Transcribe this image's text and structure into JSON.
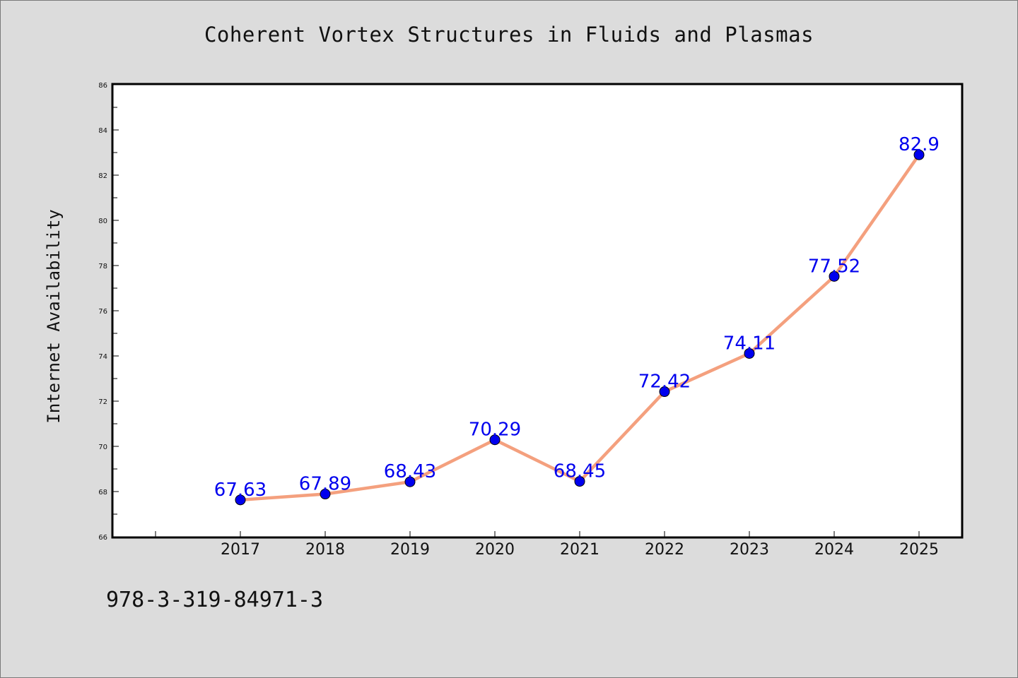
{
  "page": {
    "title": "Coherent Vortex Structures in Fluids and Plasmas",
    "isbn": "978-3-319-84971-3",
    "background_color": "#dcdcdc"
  },
  "chart_data": {
    "type": "line",
    "title": "Coherent Vortex Structures in Fluids and Plasmas",
    "xlabel": "",
    "ylabel": "Internet Availability",
    "x": [
      "2017",
      "2018",
      "2019",
      "2020",
      "2021",
      "2022",
      "2023",
      "2024",
      "2025"
    ],
    "series": [
      {
        "values": [
          67.63,
          67.89,
          68.43,
          70.29,
          68.45,
          72.42,
          74.11,
          77.52,
          82.9
        ],
        "data_labels": [
          "67.63",
          "67.89",
          "68.43",
          "70.29",
          "68.45",
          "72.42",
          "74.11",
          "77.52",
          "82.9"
        ],
        "line_color": "#f4a07e",
        "marker_color": "#0000ee",
        "label_color": "#0000ee"
      }
    ],
    "ylim": [
      66,
      86
    ],
    "y_ticks": [
      66,
      68,
      70,
      72,
      74,
      76,
      78,
      80,
      82,
      84,
      86
    ],
    "y_tick_labels": [
      "66",
      "68",
      "70",
      "72",
      "74",
      "76",
      "78",
      "80",
      "82",
      "84",
      "86"
    ],
    "grid": false,
    "legend": "none"
  }
}
